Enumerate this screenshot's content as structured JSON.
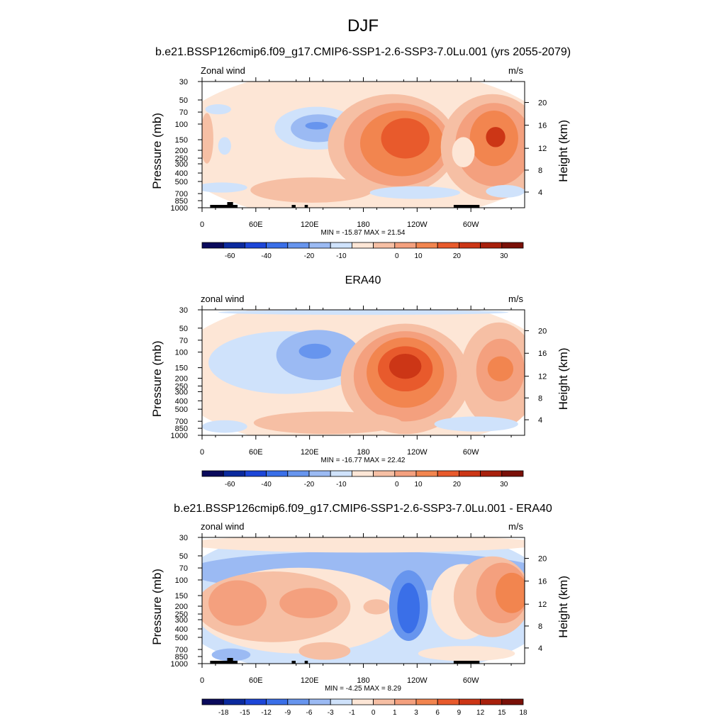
{
  "figure": {
    "title": "DJF",
    "colors": {
      "blue_deep": "#0a1a78",
      "blue": "#3a6fe8",
      "blue_light": "#cfe2fb",
      "neutral": "#fde6d6",
      "orange_light": "#f6bfa4",
      "orange": "#f2854f",
      "red_deep": "#7a1008",
      "topography": "#000000"
    }
  },
  "chart_data": [
    {
      "type": "heatmap",
      "title": "b.e21.BSSP126cmip6.f09_g17.CMIP6-SSP1-2.6-SSP3-7.0Lu.001 (yrs 2055-2079)",
      "left_label": "Zonal wind",
      "right_label": "m/s",
      "xlabel": "",
      "ylabel": "Pressure (mb)",
      "y2label": "Height (km)",
      "x_ticks": [
        "0",
        "60E",
        "120E",
        "180",
        "120W",
        "60W"
      ],
      "y_ticks": [
        "30",
        "50",
        "70",
        "100",
        "150",
        "200",
        "250",
        "300",
        "400",
        "500",
        "700",
        "850",
        "1000"
      ],
      "y2_ticks": [
        "20",
        "16",
        "12",
        "8",
        "4"
      ],
      "stats": "MIN = -15.87  MAX =  21.54",
      "colorbar_labels": [
        "-60",
        "-40",
        "-20",
        "-10",
        "0",
        "10",
        "20",
        "30"
      ],
      "features": [
        {
          "lon": 190,
          "p": 170,
          "value": 21.5
        },
        {
          "lon": 284,
          "p": 150,
          "value": 20
        },
        {
          "lon": 130,
          "p": 125,
          "value": -15.9
        },
        {
          "lon": 40,
          "p": 720,
          "value": 3
        }
      ]
    },
    {
      "type": "heatmap",
      "title": "ERA40",
      "left_label": "zonal wind",
      "right_label": "m/s",
      "xlabel": "",
      "ylabel": "Pressure (mb)",
      "y2label": "Height (km)",
      "x_ticks": [
        "0",
        "60E",
        "120E",
        "180",
        "120W",
        "60W"
      ],
      "y_ticks": [
        "30",
        "50",
        "70",
        "100",
        "150",
        "200",
        "250",
        "300",
        "400",
        "500",
        "700",
        "850",
        "1000"
      ],
      "y2_ticks": [
        "20",
        "16",
        "12",
        "8",
        "4"
      ],
      "stats": "MIN = -16.77  MAX =  22.42",
      "colorbar_labels": [
        "-60",
        "-40",
        "-20",
        "-10",
        "0",
        "10",
        "20",
        "30"
      ],
      "features": [
        {
          "lon": 190,
          "p": 150,
          "value": 22.4
        },
        {
          "lon": 288,
          "p": 150,
          "value": 16
        },
        {
          "lon": 130,
          "p": 130,
          "value": -16.8
        }
      ]
    },
    {
      "type": "heatmap",
      "title": "b.e21.BSSP126cmip6.f09_g17.CMIP6-SSP1-2.6-SSP3-7.0Lu.001 - ERA40",
      "left_label": "zonal wind",
      "right_label": "m/s",
      "xlabel": "",
      "ylabel": "Pressure (mb)",
      "y2label": "Height (km)",
      "x_ticks": [
        "0",
        "60E",
        "120E",
        "180",
        "120W",
        "60W"
      ],
      "y_ticks": [
        "30",
        "50",
        "70",
        "100",
        "150",
        "200",
        "250",
        "300",
        "400",
        "500",
        "700",
        "850",
        "1000"
      ],
      "y2_ticks": [
        "20",
        "16",
        "12",
        "8",
        "4"
      ],
      "stats": "MIN =  -4.25  MAX =   8.29",
      "colorbar_labels": [
        "-18",
        "-15",
        "-12",
        "-9",
        "-6",
        "-3",
        "-1",
        "0",
        "1",
        "3",
        "6",
        "9",
        "12",
        "15",
        "18"
      ],
      "features": [
        {
          "lon": 335,
          "p": 130,
          "value": 8.3
        },
        {
          "lon": 225,
          "p": 300,
          "value": -4.25
        }
      ]
    }
  ]
}
